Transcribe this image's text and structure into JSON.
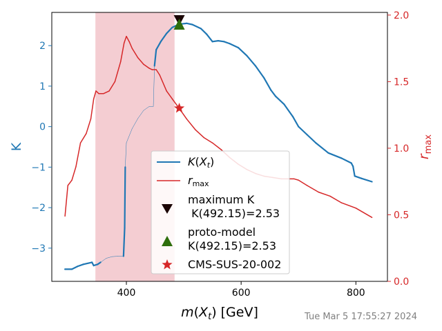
{
  "chart_data": {
    "type": "line",
    "xlabel": "m(X_t) [GeV]",
    "ylabel_left": "K",
    "ylabel_right": "r_max",
    "xlim": [
      270,
      855
    ],
    "ylim_left": [
      -3.82,
      2.82
    ],
    "ylim_right": [
      0.0,
      2.02
    ],
    "x_ticks": [
      400,
      600,
      800
    ],
    "y_ticks_left": [
      -3,
      -2,
      -1,
      0,
      1,
      2
    ],
    "y_ticks_right": [
      0.0,
      0.5,
      1.0,
      1.5,
      2.0
    ],
    "colors": {
      "K": "#1f77b4",
      "rmax": "#d62728",
      "shade": "#f4cdd2",
      "maxK": "#1a0505",
      "proto": "#2e6e0c",
      "cms": "#d62728"
    },
    "shaded_region": [
      346,
      484
    ],
    "series": [
      {
        "name": "K(X_t)",
        "axis": "left",
        "points": [
          [
            293,
            -3.52
          ],
          [
            305,
            -3.52
          ],
          [
            315,
            -3.45
          ],
          [
            325,
            -3.4
          ],
          [
            340,
            -3.35
          ],
          [
            343,
            -3.43
          ],
          [
            350,
            -3.4
          ],
          [
            355,
            -3.35
          ],
          [
            365,
            -3.25
          ],
          [
            375,
            -3.21
          ],
          [
            385,
            -3.2
          ],
          [
            395,
            -3.2
          ],
          [
            397,
            -2.5
          ],
          [
            398,
            -1.0
          ],
          [
            400,
            -0.4
          ],
          [
            410,
            -0.05
          ],
          [
            420,
            0.2
          ],
          [
            430,
            0.4
          ],
          [
            440,
            0.5
          ],
          [
            447,
            0.5
          ],
          [
            449,
            1.5
          ],
          [
            452,
            1.9
          ],
          [
            460,
            2.1
          ],
          [
            470,
            2.3
          ],
          [
            480,
            2.45
          ],
          [
            492,
            2.53
          ],
          [
            505,
            2.55
          ],
          [
            515,
            2.52
          ],
          [
            530,
            2.42
          ],
          [
            540,
            2.28
          ],
          [
            550,
            2.1
          ],
          [
            560,
            2.12
          ],
          [
            570,
            2.1
          ],
          [
            580,
            2.05
          ],
          [
            595,
            1.95
          ],
          [
            610,
            1.75
          ],
          [
            625,
            1.5
          ],
          [
            640,
            1.2
          ],
          [
            652,
            0.9
          ],
          [
            660,
            0.75
          ],
          [
            675,
            0.55
          ],
          [
            690,
            0.25
          ],
          [
            700,
            0.0
          ],
          [
            715,
            -0.2
          ],
          [
            730,
            -0.4
          ],
          [
            752,
            -0.65
          ],
          [
            775,
            -0.78
          ],
          [
            792,
            -0.9
          ],
          [
            795,
            -0.98
          ],
          [
            798,
            -1.22
          ],
          [
            810,
            -1.28
          ],
          [
            828,
            -1.36
          ]
        ],
        "thin_segments": [
          [
            355,
            395
          ],
          [
            398,
            449
          ]
        ]
      },
      {
        "name": "r_max",
        "axis": "right",
        "points": [
          [
            293,
            0.49
          ],
          [
            298,
            0.72
          ],
          [
            305,
            0.76
          ],
          [
            312,
            0.86
          ],
          [
            320,
            1.04
          ],
          [
            330,
            1.11
          ],
          [
            338,
            1.22
          ],
          [
            343,
            1.37
          ],
          [
            347,
            1.43
          ],
          [
            352,
            1.41
          ],
          [
            360,
            1.41
          ],
          [
            370,
            1.43
          ],
          [
            380,
            1.5
          ],
          [
            390,
            1.65
          ],
          [
            396,
            1.79
          ],
          [
            400,
            1.84
          ],
          [
            405,
            1.8
          ],
          [
            410,
            1.75
          ],
          [
            420,
            1.68
          ],
          [
            430,
            1.63
          ],
          [
            440,
            1.6
          ],
          [
            445,
            1.59
          ],
          [
            452,
            1.59
          ],
          [
            458,
            1.55
          ],
          [
            470,
            1.43
          ],
          [
            480,
            1.37
          ],
          [
            492,
            1.3
          ],
          [
            505,
            1.22
          ],
          [
            520,
            1.14
          ],
          [
            535,
            1.08
          ],
          [
            550,
            1.04
          ],
          [
            565,
            0.99
          ],
          [
            580,
            0.93
          ],
          [
            595,
            0.88
          ],
          [
            610,
            0.84
          ],
          [
            625,
            0.81
          ],
          [
            640,
            0.79
          ],
          [
            655,
            0.78
          ],
          [
            670,
            0.77
          ],
          [
            680,
            0.77
          ],
          [
            692,
            0.77
          ],
          [
            700,
            0.76
          ],
          [
            715,
            0.72
          ],
          [
            735,
            0.67
          ],
          [
            755,
            0.64
          ],
          [
            775,
            0.59
          ],
          [
            800,
            0.55
          ],
          [
            828,
            0.48
          ]
        ]
      }
    ],
    "markers": [
      {
        "name": "maximum K\n K(492.15)=2.53",
        "x": 492.15,
        "y": 2.53,
        "axis": "left",
        "shape": "down-triangle"
      },
      {
        "name": "proto-model\nK(492.15)=2.53",
        "x": 492.15,
        "y": 2.53,
        "axis": "left",
        "shape": "up-triangle"
      },
      {
        "name": "CMS-SUS-20-002",
        "x": 492.15,
        "y": 1.3,
        "axis": "right",
        "shape": "star"
      }
    ],
    "legend": {
      "placement": "lower-center",
      "entries": [
        "K(X_t)",
        "r_max",
        "maximum K\n K(492.15)=2.53",
        "proto-model\nK(492.15)=2.53",
        "CMS-SUS-20-002"
      ]
    }
  },
  "timestamp": "Tue Mar  5 17:55:27 2024"
}
